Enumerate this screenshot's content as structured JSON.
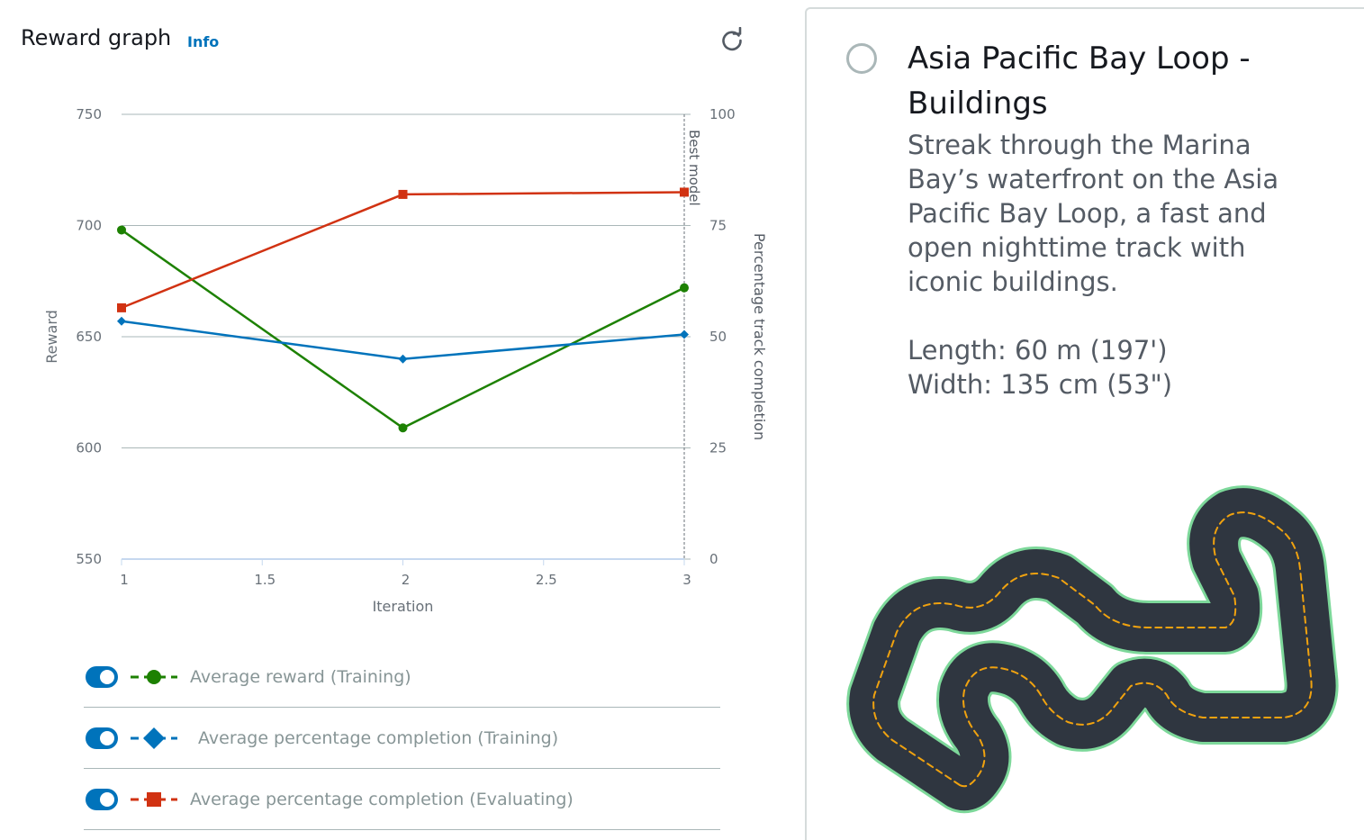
{
  "header": {
    "title": "Reward graph",
    "info_label": "Info"
  },
  "icons": {
    "refresh": "refresh-icon",
    "toggle": "toggle-icon",
    "radio": "radio-button"
  },
  "colors": {
    "training_reward": "#1d8102",
    "training_completion": "#0073bb",
    "evaluating_completion": "#d13212",
    "toggle_on": "#0073bb"
  },
  "chart_data": {
    "type": "line",
    "x": [
      1,
      2,
      3
    ],
    "xlabel": "Iteration",
    "xticks": [
      "1",
      "1.5",
      "2",
      "2.5",
      "3"
    ],
    "xlim": [
      1,
      3
    ],
    "ylabel": "Reward",
    "ylim": [
      550,
      750
    ],
    "yticks": [
      "550",
      "600",
      "650",
      "700",
      "750"
    ],
    "y2label": "Percentage track completion",
    "y2lim": [
      0,
      100
    ],
    "y2ticks": [
      "0",
      "25",
      "50",
      "75",
      "100"
    ],
    "grid": true,
    "annotation": {
      "x": 3,
      "text": "Best model"
    },
    "series": [
      {
        "name": "Average reward (Training)",
        "axis": "left",
        "marker": "circle",
        "color": "#1d8102",
        "values": [
          698,
          609,
          672
        ]
      },
      {
        "name": "Average percentage completion (Training)",
        "axis": "right",
        "marker": "diamond",
        "color": "#0073bb",
        "values": [
          53.5,
          45,
          50.5
        ]
      },
      {
        "name": "Average percentage completion (Evaluating)",
        "axis": "right",
        "marker": "square",
        "color": "#d13212",
        "values": [
          56.5,
          82,
          82.5
        ]
      }
    ]
  },
  "legend": [
    {
      "label": "Average reward (Training)",
      "enabled": true
    },
    {
      "label": "Average percentage completion (Training)",
      "enabled": true
    },
    {
      "label": "Average percentage completion (Evaluating)",
      "enabled": true
    }
  ],
  "track": {
    "title": "Asia Pacific Bay Loop - Buildings",
    "description": "Streak through the Marina Bay’s waterfront on the Asia Pacific Bay Loop, a fast and open nighttime track with iconic buildings.",
    "length": "Length: 60 m (197')",
    "width": "Width: 135 cm (53\")",
    "selected": false
  }
}
